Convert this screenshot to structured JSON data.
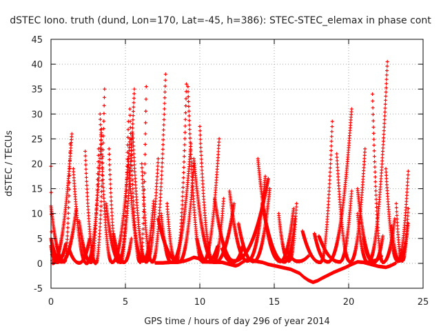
{
  "chart_data": {
    "type": "scatter",
    "title": "dSTEC Iono. truth (dund, Lon=170, Lat=-45, h=386): STEC-STEC_elemax in phase cont",
    "xlabel": "GPS time / hours of day 296 of year 2014",
    "ylabel": "dSTEC  / TECUs",
    "xlim": [
      0,
      25
    ],
    "ylim": [
      -5,
      45
    ],
    "xticks": [
      "0",
      "5",
      "10",
      "15",
      "20",
      "25"
    ],
    "yticks": [
      "-5",
      "0",
      "5",
      "10",
      "15",
      "20",
      "25",
      "30",
      "35",
      "40",
      "45"
    ],
    "grid": true,
    "marker": "plus",
    "color": "#ff0000",
    "series": [
      {
        "passes": [
          {
            "start": 0.0,
            "min": 0.1,
            "end": 1.4,
            "y0": 19.5,
            "ymin": 0.0,
            "y1": 26.0
          },
          {
            "start": 2.3,
            "min": 3.0,
            "end": 3.6,
            "y0": 22.5,
            "ymin": 0.0,
            "y1": 35.0
          },
          {
            "start": 3.9,
            "min": 4.5,
            "end": 5.6,
            "y0": 23.0,
            "ymin": 0.3,
            "y1": 35.0
          },
          {
            "start": 5.3,
            "min": 6.0,
            "end": 6.4,
            "y0": 31.0,
            "ymin": 0.2,
            "y1": 35.5
          },
          {
            "start": 6.1,
            "min": 6.8,
            "end": 7.7,
            "y0": 20.0,
            "ymin": 0.3,
            "y1": 38.0
          },
          {
            "start": 7.8,
            "min": 8.4,
            "end": 9.1,
            "y0": 12.0,
            "ymin": 0.2,
            "y1": 36.0
          },
          {
            "start": 9.2,
            "min": 10.2,
            "end": 11.3,
            "y0": 35.5,
            "ymin": 0.3,
            "y1": 25.0
          },
          {
            "start": 11.0,
            "min": 12.3,
            "end": 14.6,
            "y0": 13.0,
            "ymin": 0.5,
            "y1": 17.0
          },
          {
            "start": 13.9,
            "min": 15.4,
            "end": 16.3,
            "y0": 21.0,
            "ymin": 0.4,
            "y1": 11.0
          },
          {
            "start": 17.7,
            "min": 18.6,
            "end": 20.2,
            "y0": 6.0,
            "ymin": 0.3,
            "y1": 31.0
          },
          {
            "start": 20.6,
            "min": 21.3,
            "end": 22.6,
            "y0": 10.0,
            "ymin": 0.2,
            "y1": 40.5
          },
          {
            "start": 22.5,
            "min": 23.3,
            "end": 24.0,
            "y0": 19.0,
            "ymin": 0.5,
            "y1": 18.5
          }
        ]
      },
      {
        "passes": [
          {
            "start": 0.0,
            "min": 0.9,
            "end": 1.3,
            "y0": 11.5,
            "ymin": 0.3,
            "y1": 24.0
          },
          {
            "start": 1.5,
            "min": 2.4,
            "end": 3.4,
            "y0": 19.0,
            "ymin": 0.0,
            "y1": 27.0
          },
          {
            "start": 3.3,
            "min": 4.1,
            "end": 5.3,
            "y0": 30.0,
            "ymin": 0.2,
            "y1": 25.0
          },
          {
            "start": 5.5,
            "min": 6.4,
            "end": 7.2,
            "y0": 26.0,
            "ymin": 0.3,
            "y1": 21.0
          },
          {
            "start": 7.4,
            "min": 8.1,
            "end": 9.4,
            "y0": 10.0,
            "ymin": 0.2,
            "y1": 24.0
          },
          {
            "start": 10.0,
            "min": 10.9,
            "end": 11.6,
            "y0": 27.5,
            "ymin": 0.3,
            "y1": 13.0
          },
          {
            "start": 12.0,
            "min": 13.2,
            "end": 14.4,
            "y0": 14.5,
            "ymin": 0.5,
            "y1": 17.5
          },
          {
            "start": 15.3,
            "min": 16.0,
            "end": 16.5,
            "y0": 10.0,
            "ymin": 0.5,
            "y1": 12.0
          },
          {
            "start": 16.9,
            "min": 18.1,
            "end": 18.9,
            "y0": 6.5,
            "ymin": 0.2,
            "y1": 28.5
          },
          {
            "start": 19.2,
            "min": 20.1,
            "end": 21.1,
            "y0": 22.0,
            "ymin": 0.3,
            "y1": 23.0
          },
          {
            "start": 21.6,
            "min": 22.3,
            "end": 23.1,
            "y0": 34.0,
            "ymin": 0.2,
            "y1": 9.0
          },
          {
            "start": 23.2,
            "min": 23.6,
            "end": 24.0,
            "y0": 12.0,
            "ymin": 0.5,
            "y1": 11.0
          }
        ]
      },
      {
        "passes": [
          {
            "start": 0.0,
            "min": 0.7,
            "end": 1.7,
            "y0": 5.0,
            "ymin": 0.3,
            "y1": 11.0
          },
          {
            "start": 1.9,
            "min": 2.7,
            "end": 3.2,
            "y0": 8.5,
            "ymin": 0.2,
            "y1": 23.0
          },
          {
            "start": 3.7,
            "min": 4.7,
            "end": 5.2,
            "y0": 12.0,
            "ymin": 0.2,
            "y1": 28.5
          },
          {
            "start": 5.2,
            "min": 6.2,
            "end": 6.9,
            "y0": 21.0,
            "ymin": 0.5,
            "y1": 12.5
          },
          {
            "start": 7.2,
            "min": 8.6,
            "end": 9.6,
            "y0": 9.0,
            "ymin": 0.3,
            "y1": 20.0
          },
          {
            "start": 9.6,
            "min": 11.0,
            "end": 12.3,
            "y0": 21.0,
            "ymin": 0.2,
            "y1": 12.0
          },
          {
            "start": 12.6,
            "min": 13.6,
            "end": 14.7,
            "y0": 8.0,
            "ymin": 0.4,
            "y1": 15.0
          },
          {
            "start": 14.2,
            "min": 15.7,
            "end": 16.4,
            "y0": 12.0,
            "ymin": 0.3,
            "y1": 9.0
          },
          {
            "start": 18.0,
            "min": 19.4,
            "end": 20.2,
            "y0": 5.5,
            "ymin": 0.3,
            "y1": 14.5
          },
          {
            "start": 20.6,
            "min": 21.7,
            "end": 22.3,
            "y0": 15.0,
            "ymin": 0.2,
            "y1": 5.5
          },
          {
            "start": 22.9,
            "min": 23.4,
            "end": 24.0,
            "y0": 7.5,
            "ymin": 0.5,
            "y1": 8.0
          }
        ]
      },
      {
        "passes": [
          {
            "start": 0.0,
            "min": 0.4,
            "end": 1.0,
            "y0": 3.5,
            "ymin": 0.2,
            "y1": 4.0
          },
          {
            "start": 1.2,
            "min": 1.9,
            "end": 2.6,
            "y0": 3.0,
            "ymin": 0.1,
            "y1": 5.0
          },
          {
            "start": 4.2,
            "min": 4.9,
            "end": 5.4,
            "y0": 6.0,
            "ymin": 0.2,
            "y1": 5.0
          },
          {
            "start": 9.8,
            "min": 10.5,
            "end": 11.2,
            "y0": 5.0,
            "ymin": 0.3,
            "y1": 3.5
          },
          {
            "start": 11.5,
            "min": 12.2,
            "end": 12.9,
            "y0": 3.0,
            "ymin": 0.2,
            "y1": 3.5
          },
          {
            "start": 15.9,
            "min": 16.6,
            "end": 17.3,
            "y0": 2.5,
            "ymin": 0.4,
            "y1": 1.5
          },
          {
            "start": 21.0,
            "min": 21.6,
            "end": 22.2,
            "y0": 5.0,
            "ymin": 0.5,
            "y1": 1.5
          }
        ]
      },
      {
        "points": [
          [
            7.0,
            0.1
          ],
          [
            7.5,
            0.1
          ],
          [
            8.0,
            0.2
          ],
          [
            8.5,
            0.2
          ],
          [
            9.0,
            0.5
          ],
          [
            9.3,
            0.8
          ],
          [
            9.6,
            1.2
          ],
          [
            9.9,
            1.0
          ],
          [
            10.2,
            0.3
          ],
          [
            11.5,
            0.2
          ],
          [
            12.0,
            -0.2
          ],
          [
            12.4,
            -0.5
          ],
          [
            12.6,
            -0.3
          ],
          [
            13.0,
            0.5
          ],
          [
            13.3,
            0.9
          ],
          [
            13.8,
            0.4
          ],
          [
            14.2,
            0.2
          ],
          [
            14.6,
            -0.2
          ],
          [
            14.9,
            -0.4
          ],
          [
            15.2,
            -0.6
          ],
          [
            15.5,
            -0.8
          ],
          [
            15.8,
            -1.0
          ],
          [
            16.1,
            -1.2
          ],
          [
            16.4,
            -1.6
          ],
          [
            16.7,
            -2.0
          ],
          [
            17.0,
            -2.8
          ],
          [
            17.3,
            -3.4
          ],
          [
            17.6,
            -3.8
          ],
          [
            17.9,
            -3.5
          ],
          [
            18.2,
            -3.0
          ],
          [
            18.6,
            -2.4
          ],
          [
            19.0,
            -1.8
          ],
          [
            19.4,
            -1.3
          ],
          [
            19.8,
            -0.8
          ],
          [
            20.2,
            -0.2
          ],
          [
            20.6,
            0.3
          ],
          [
            21.0,
            0.2
          ],
          [
            21.5,
            -0.2
          ],
          [
            22.0,
            -0.6
          ],
          [
            22.5,
            -0.8
          ],
          [
            22.8,
            -0.5
          ],
          [
            23.2,
            0.1
          ]
        ]
      }
    ]
  }
}
